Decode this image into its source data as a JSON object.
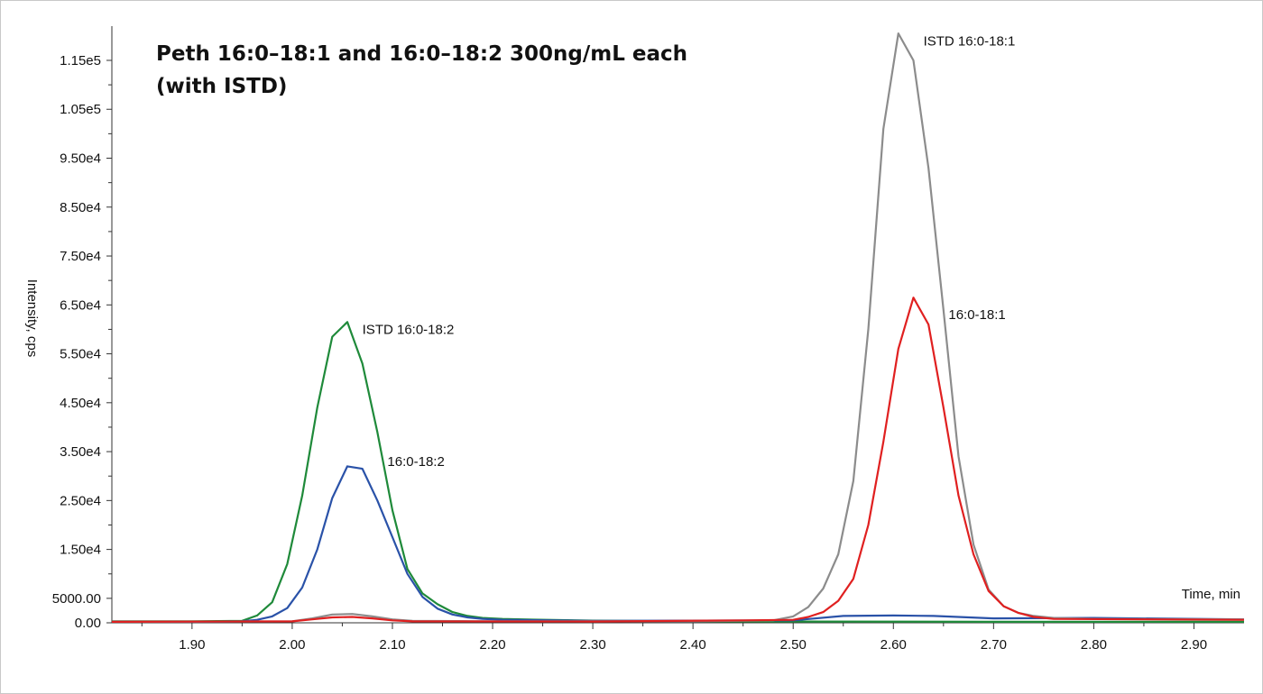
{
  "chart_data": {
    "type": "line",
    "title_lines": [
      "Peth 16:0–18:1 and 16:0–18:2 300ng/mL each",
      "(with ISTD)"
    ],
    "xlabel": "Time, min",
    "ylabel": "Intensity, cps",
    "xlim": [
      1.82,
      2.95
    ],
    "ylim": [
      0,
      122000
    ],
    "x_ticks": [
      1.9,
      2.0,
      2.1,
      2.2,
      2.3,
      2.4,
      2.5,
      2.6,
      2.7,
      2.8,
      2.9
    ],
    "x_tick_labels": [
      "1.90",
      "2.00",
      "2.10",
      "2.20",
      "2.30",
      "2.40",
      "2.50",
      "2.60",
      "2.70",
      "2.80",
      "2.90"
    ],
    "y_ticks": [
      0,
      5000,
      15000,
      25000,
      35000,
      45000,
      55000,
      65000,
      75000,
      85000,
      95000,
      105000,
      115000
    ],
    "y_tick_labels": [
      "0.00",
      "5000.00",
      "1.50e4",
      "2.50e4",
      "3.50e4",
      "4.50e4",
      "5.50e4",
      "6.50e4",
      "7.50e4",
      "8.50e4",
      "9.50e4",
      "1.05e5",
      "1.15e5"
    ],
    "grid": false,
    "series": [
      {
        "name": "ISTD 16:0-18:2",
        "color": "#1f8a3a",
        "points": [
          [
            1.82,
            300
          ],
          [
            1.9,
            300
          ],
          [
            1.95,
            400
          ],
          [
            1.965,
            1500
          ],
          [
            1.98,
            4200
          ],
          [
            1.995,
            12000
          ],
          [
            2.01,
            26000
          ],
          [
            2.025,
            44000
          ],
          [
            2.04,
            58500
          ],
          [
            2.055,
            61500
          ],
          [
            2.07,
            53000
          ],
          [
            2.085,
            39000
          ],
          [
            2.1,
            23000
          ],
          [
            2.115,
            11000
          ],
          [
            2.13,
            6000
          ],
          [
            2.145,
            3800
          ],
          [
            2.16,
            2200
          ],
          [
            2.175,
            1400
          ],
          [
            2.19,
            1000
          ],
          [
            2.21,
            800
          ],
          [
            2.24,
            650
          ],
          [
            2.3,
            450
          ],
          [
            2.4,
            300
          ],
          [
            2.5,
            250
          ],
          [
            2.7,
            200
          ],
          [
            2.95,
            200
          ]
        ],
        "label_at": [
          2.07,
          60000
        ]
      },
      {
        "name": "16:0-18:2",
        "color": "#2a52a8",
        "points": [
          [
            1.82,
            200
          ],
          [
            1.9,
            200
          ],
          [
            1.95,
            300
          ],
          [
            1.965,
            600
          ],
          [
            1.98,
            1300
          ],
          [
            1.995,
            3000
          ],
          [
            2.01,
            7200
          ],
          [
            2.025,
            15000
          ],
          [
            2.04,
            25500
          ],
          [
            2.055,
            32000
          ],
          [
            2.07,
            31500
          ],
          [
            2.085,
            25000
          ],
          [
            2.1,
            17500
          ],
          [
            2.115,
            10000
          ],
          [
            2.13,
            5300
          ],
          [
            2.145,
            2900
          ],
          [
            2.16,
            1700
          ],
          [
            2.175,
            1100
          ],
          [
            2.19,
            800
          ],
          [
            2.21,
            600
          ],
          [
            2.3,
            400
          ],
          [
            2.5,
            500
          ],
          [
            2.55,
            1400
          ],
          [
            2.6,
            1500
          ],
          [
            2.64,
            1400
          ],
          [
            2.7,
            900
          ],
          [
            2.8,
            1000
          ],
          [
            2.95,
            700
          ]
        ],
        "label_at": [
          2.095,
          33000
        ]
      },
      {
        "name": "ISTD 16:0-18:1",
        "color": "#8c8c8c",
        "points": [
          [
            1.82,
            200
          ],
          [
            2.0,
            300
          ],
          [
            2.02,
            900
          ],
          [
            2.04,
            1700
          ],
          [
            2.06,
            1800
          ],
          [
            2.08,
            1300
          ],
          [
            2.1,
            700
          ],
          [
            2.12,
            400
          ],
          [
            2.2,
            300
          ],
          [
            2.4,
            300
          ],
          [
            2.48,
            500
          ],
          [
            2.5,
            1300
          ],
          [
            2.515,
            3200
          ],
          [
            2.53,
            7000
          ],
          [
            2.545,
            14000
          ],
          [
            2.56,
            29000
          ],
          [
            2.575,
            60000
          ],
          [
            2.59,
            101000
          ],
          [
            2.605,
            120500
          ],
          [
            2.62,
            115000
          ],
          [
            2.635,
            93000
          ],
          [
            2.65,
            64000
          ],
          [
            2.665,
            34000
          ],
          [
            2.68,
            16000
          ],
          [
            2.695,
            6800
          ],
          [
            2.71,
            3400
          ],
          [
            2.725,
            2000
          ],
          [
            2.74,
            1400
          ],
          [
            2.76,
            1000
          ],
          [
            2.8,
            800
          ],
          [
            2.95,
            700
          ]
        ],
        "label_at": [
          2.63,
          119000
        ]
      },
      {
        "name": "16:0-18:1",
        "color": "#e02020",
        "points": [
          [
            1.82,
            200
          ],
          [
            2.0,
            300
          ],
          [
            2.02,
            700
          ],
          [
            2.04,
            1100
          ],
          [
            2.06,
            1200
          ],
          [
            2.08,
            900
          ],
          [
            2.1,
            500
          ],
          [
            2.12,
            300
          ],
          [
            2.3,
            250
          ],
          [
            2.45,
            500
          ],
          [
            2.5,
            600
          ],
          [
            2.515,
            1200
          ],
          [
            2.53,
            2200
          ],
          [
            2.545,
            4500
          ],
          [
            2.56,
            9000
          ],
          [
            2.575,
            20000
          ],
          [
            2.59,
            37000
          ],
          [
            2.605,
            56000
          ],
          [
            2.62,
            66500
          ],
          [
            2.635,
            61000
          ],
          [
            2.65,
            44000
          ],
          [
            2.665,
            26000
          ],
          [
            2.68,
            14000
          ],
          [
            2.695,
            6500
          ],
          [
            2.71,
            3400
          ],
          [
            2.725,
            2000
          ],
          [
            2.74,
            1200
          ],
          [
            2.76,
            800
          ],
          [
            2.95,
            600
          ]
        ],
        "label_at": [
          2.655,
          63000
        ]
      }
    ]
  }
}
